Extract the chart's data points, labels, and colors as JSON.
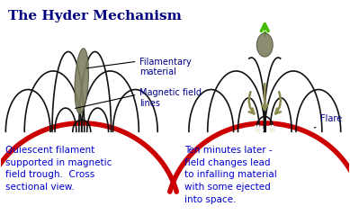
{
  "title": "The Hyder Mechanism",
  "title_color": "#000080",
  "title_fontsize": 11,
  "bg_color": "#ffffff",
  "label_filamentary": "Filamentary\nmaterial",
  "label_magnetic": "Magnetic field\nlines",
  "label_flare": "Flare",
  "label_left": "Quiescent filament\nsupported in magnetic\nfield trough.  Cross\nsectional view.",
  "label_right": "Ten minutes later -\nfield changes lead\nto infalling material\nwith some ejected\ninto space.",
  "text_color_labels": "#0000cd",
  "text_color_annotations": "#00008b",
  "sun_surface_color": "#cc0000",
  "loop_color": "#111111",
  "filament_color": "#808060",
  "arrow_color": "#8b8c50",
  "flare_color": "#ffffff",
  "green_arrow_color": "#44bb00"
}
